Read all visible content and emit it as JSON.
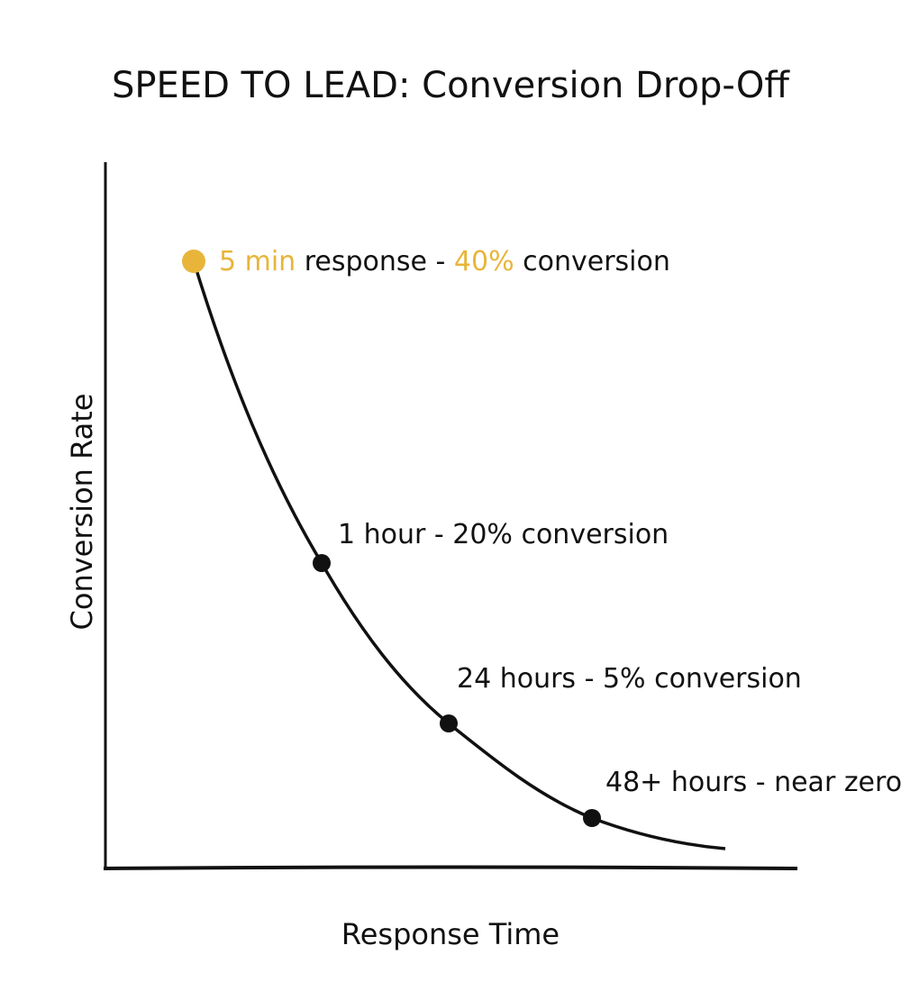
{
  "chart_data": {
    "type": "line",
    "title": "SPEED TO LEAD: Conversion Drop-Off",
    "xlabel": "Response Time",
    "ylabel": "Conversion Rate",
    "grid": false,
    "legend": "none",
    "colors": {
      "highlight": "#E8B53A",
      "line": "#111111"
    },
    "points": [
      {
        "x": "5 min",
        "y": 40,
        "highlight": true,
        "label_parts": [
          {
            "text": "5 min",
            "color": "#E8B53A"
          },
          {
            "text": " response - ",
            "color": "#111111"
          },
          {
            "text": "40%",
            "color": "#E8B53A"
          },
          {
            "text": " conversion",
            "color": "#111111"
          }
        ]
      },
      {
        "x": "1 hour",
        "y": 20,
        "label_parts": [
          {
            "text": "1 hour - 20% conversion",
            "color": "#111111"
          }
        ]
      },
      {
        "x": "24 hours",
        "y": 5,
        "label_parts": [
          {
            "text": "24 hours - 5% conversion",
            "color": "#111111"
          }
        ]
      },
      {
        "x": "48+ hours",
        "y": 0,
        "label_parts": [
          {
            "text": "48+ hours - near zero",
            "color": "#111111"
          }
        ]
      }
    ]
  }
}
